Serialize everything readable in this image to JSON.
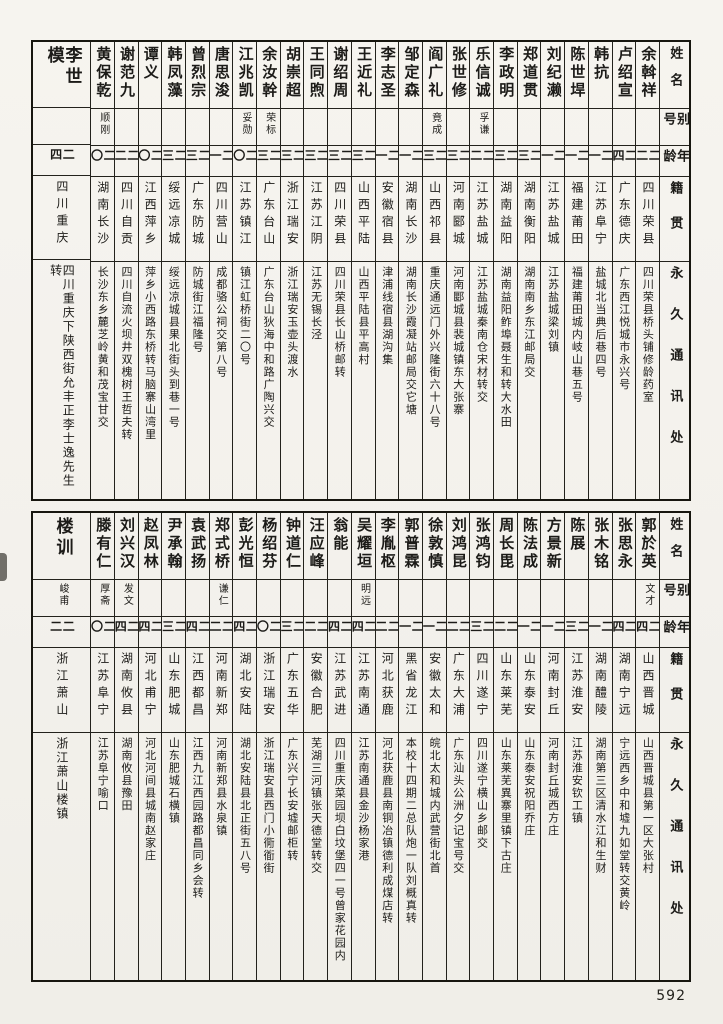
{
  "page_number": "592",
  "header": {
    "name": "姓名",
    "alias": "别号",
    "age": "年龄",
    "native": "籍贯",
    "address": "永久通讯处"
  },
  "tables": [
    {
      "entries": [
        {
          "name": "余斡祥",
          "alias": "",
          "age": "二二",
          "native": "四川荣县",
          "address": "四川荣县桥头铺修龄药室"
        },
        {
          "name": "卢绍宣",
          "alias": "",
          "age": "二四",
          "native": "广东德庆",
          "address": "广东西江悦城市永兴号"
        },
        {
          "name": "韩抗",
          "alias": "",
          "age": "二一",
          "native": "江苏阜宁",
          "address": "盐城北当典后巷四号"
        },
        {
          "name": "陈世垾",
          "alias": "",
          "age": "二一",
          "native": "福建莆田",
          "address": "福建莆田城内岐山巷五号"
        },
        {
          "name": "刘纪濑",
          "alias": "",
          "age": "二一",
          "native": "江苏盐城",
          "address": "江苏盐城梁刘镇"
        },
        {
          "name": "郑道贯",
          "alias": "",
          "age": "二三",
          "native": "湖南衡阳",
          "address": "湖南南乡东江邮局交"
        },
        {
          "name": "李政明",
          "alias": "",
          "age": "二三",
          "native": "湖南益阳",
          "address": "湖南益阳鲊埠聂生和转大水田"
        },
        {
          "name": "乐信诚",
          "alias": "孚谦",
          "age": "二二",
          "native": "江苏盐城",
          "address": "江苏盐城秦南仓宋材转交"
        },
        {
          "name": "张世修",
          "alias": "",
          "age": "二三",
          "native": "河南郾城",
          "address": "河南郾城县裴城镇东大张寨"
        },
        {
          "name": "阎广礼",
          "alias": "竟成",
          "age": "二三",
          "native": "山西祁县",
          "address": "重庆通远门外兴隆街六十八号"
        },
        {
          "name": "邹定森",
          "alias": "",
          "age": "二一",
          "native": "湖南长沙",
          "address": "湖南长沙霞凝站邮局交它塘"
        },
        {
          "name": "李志圣",
          "alias": "",
          "age": "二一",
          "native": "安徽宿县",
          "address": "津浦线宿县湖沟集"
        },
        {
          "name": "王近礼",
          "alias": "",
          "age": "二三",
          "native": "山西平陆",
          "address": "山西平陆县平高村"
        },
        {
          "name": "谢绍周",
          "alias": "",
          "age": "二三",
          "native": "四川荣县",
          "address": "四川荣县长山桥邮转"
        },
        {
          "name": "王同煦",
          "alias": "",
          "age": "二三",
          "native": "江苏江阴",
          "address": "江苏无锡长泾"
        },
        {
          "name": "胡崇超",
          "alias": "",
          "age": "二三",
          "native": "浙江瑞安",
          "address": "浙江瑞安玉壶头渡水"
        },
        {
          "name": "余汝幹",
          "alias": "荣标",
          "age": "二三",
          "native": "广东台山",
          "address": "广东台山狄海中和路广陶兴交"
        },
        {
          "name": "江兆凯",
          "alias": "妥勋",
          "age": "二〇",
          "native": "江苏镇江",
          "address": "镇江虹桥街二〇号"
        },
        {
          "name": "唐思浚",
          "alias": "",
          "age": "二一",
          "native": "四川营山",
          "address": "成都骆公祠交第八号"
        },
        {
          "name": "曾烈宗",
          "alias": "",
          "age": "二三",
          "native": "广东防城",
          "address": "防城街江福隆号"
        },
        {
          "name": "韩凤藻",
          "alias": "",
          "age": "二三",
          "native": "绥远凉城",
          "address": "绥远凉城县果北街头到巷一号"
        },
        {
          "name": "谭义",
          "alias": "",
          "age": "二〇",
          "native": "江西萍乡",
          "address": "萍乡小西路东桥转马脑寨山湾里"
        },
        {
          "name": "谢范九",
          "alias": "",
          "age": "二二",
          "native": "四川自贡",
          "address": "四川自流火坝井双槐树王哲夫转"
        },
        {
          "name": "黄保乾",
          "alias": "顺刚",
          "age": "二〇",
          "native": "湖南长沙",
          "address": "长沙东乡麓芝岭黄和茂宝甘交"
        },
        {
          "name": "李世模",
          "alias": "",
          "age": "二四",
          "native": "四川重庆",
          "address": "四川重庆下陕西街允丰正李士逸先生转"
        }
      ]
    },
    {
      "entries": [
        {
          "name": "郭於英",
          "alias": "文才",
          "age": "二四",
          "native": "山西晋城",
          "address": "山西晋城县第一区大张村"
        },
        {
          "name": "张思永",
          "alias": "",
          "age": "二四",
          "native": "湖南宁远",
          "address": "宁远西乡中和墟九如堂转交黄岭"
        },
        {
          "name": "张木铭",
          "alias": "",
          "age": "二一",
          "native": "湖南醴陵",
          "address": "湖南第三区清水江和生财"
        },
        {
          "name": "陈展",
          "alias": "",
          "age": "二三",
          "native": "江苏淮安",
          "address": "江苏淮安钦工镇"
        },
        {
          "name": "方景新",
          "alias": "",
          "age": "二一",
          "native": "河南封丘",
          "address": "河南封丘城西方庄"
        },
        {
          "name": "陈法成",
          "alias": "",
          "age": "二一",
          "native": "山东泰安",
          "address": "山东泰安祝阳乔庄"
        },
        {
          "name": "周长毘",
          "alias": "",
          "age": "二二",
          "native": "山东莱芜",
          "address": "山东莱芜異寨里镇下古庄"
        },
        {
          "name": "张鸿钧",
          "alias": "",
          "age": "二三",
          "native": "四川遂宁",
          "address": "四川遂宁横山乡邮交"
        },
        {
          "name": "刘鸿昆",
          "alias": "",
          "age": "二二",
          "native": "广东大浦",
          "address": "广东汕头公洲夕记宝号交"
        },
        {
          "name": "徐敦慎",
          "alias": "",
          "age": "二一",
          "native": "安徽太和",
          "address": "皖北太和城内武营街北首"
        },
        {
          "name": "郭普霖",
          "alias": "",
          "age": "二一",
          "native": "黑省龙江",
          "address": "本校十四期二总队炮一队刘概真转"
        },
        {
          "name": "李胤枢",
          "alias": "",
          "age": "二二",
          "native": "河北获鹿",
          "address": "河北获鹿县南铜冶镇德利成煤店转"
        },
        {
          "name": "吴耀垣",
          "alias": "明远",
          "age": "二四",
          "native": "江苏南通",
          "address": "江苏南通县金沙杨家港"
        },
        {
          "name": "翁能",
          "alias": "",
          "age": "二四",
          "native": "江苏武进",
          "address": "四川重庆菜园坝白坟堡四一号曾家花园内"
        },
        {
          "name": "汪应峰",
          "alias": "",
          "age": "二二",
          "native": "安徽合肥",
          "address": "芜湖三河镇张天德堂转交"
        },
        {
          "name": "钟道仁",
          "alias": "",
          "age": "二三",
          "native": "广东五华",
          "address": "广东兴宁长安墟邮柜转"
        },
        {
          "name": "杨绍芬",
          "alias": "",
          "age": "二〇",
          "native": "浙江瑞安",
          "address": "浙江瑞安县西门小衕衜街"
        },
        {
          "name": "彭光恒",
          "alias": "",
          "age": "二四",
          "native": "湖北安陆",
          "address": "湖北安陆县北正街五八号"
        },
        {
          "name": "郑式桥",
          "alias": "谦仁",
          "age": "二二",
          "native": "河南新郑",
          "address": "河南新郑县水泉镇"
        },
        {
          "name": "袁武扬",
          "alias": "",
          "age": "二四",
          "native": "江西都昌",
          "address": "江西九江西园路都昌同乡会转"
        },
        {
          "name": "尹承翰",
          "alias": "",
          "age": "二三",
          "native": "山东肥城",
          "address": "山东肥城石横镇"
        },
        {
          "name": "赵凤林",
          "alias": "",
          "age": "二四",
          "native": "河北甫宁",
          "address": "河北河间县城南赵家庄"
        },
        {
          "name": "刘兴汉",
          "alias": "发文",
          "age": "二四",
          "native": "湖南攸县",
          "address": "湖南攸县豫田"
        },
        {
          "name": "滕有仁",
          "alias": "厚斋",
          "age": "二〇",
          "native": "江苏阜宁",
          "address": "江苏阜宁喻口"
        },
        {
          "name": "楼训",
          "alias": "峻甫",
          "age": "二二",
          "native": "浙江萧山",
          "address": "浙江萧山楼镇"
        }
      ]
    }
  ]
}
